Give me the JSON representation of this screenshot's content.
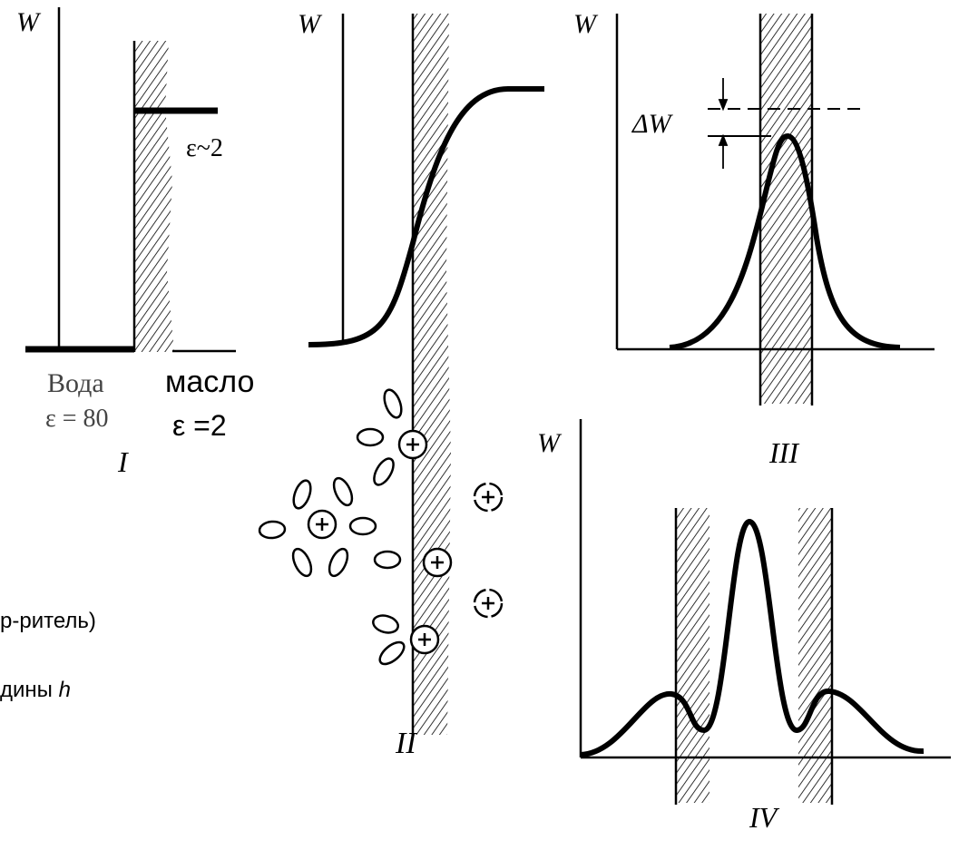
{
  "panels": [
    {
      "numeral": "I",
      "axis_label": "W",
      "annotation": "ε~2",
      "water": "Вода",
      "water_eps": "ε = 80",
      "oil": "масло",
      "oil_eps": "ε =2"
    },
    {
      "numeral": "II",
      "axis_label": "W"
    },
    {
      "numeral": "III",
      "axis_label": "W",
      "delta": "ΔW"
    },
    {
      "numeral": "IV",
      "axis_label": "W"
    }
  ],
  "side_text": {
    "line1": "р-ритель)",
    "line2": "дины",
    "line2_symbol": "h"
  }
}
